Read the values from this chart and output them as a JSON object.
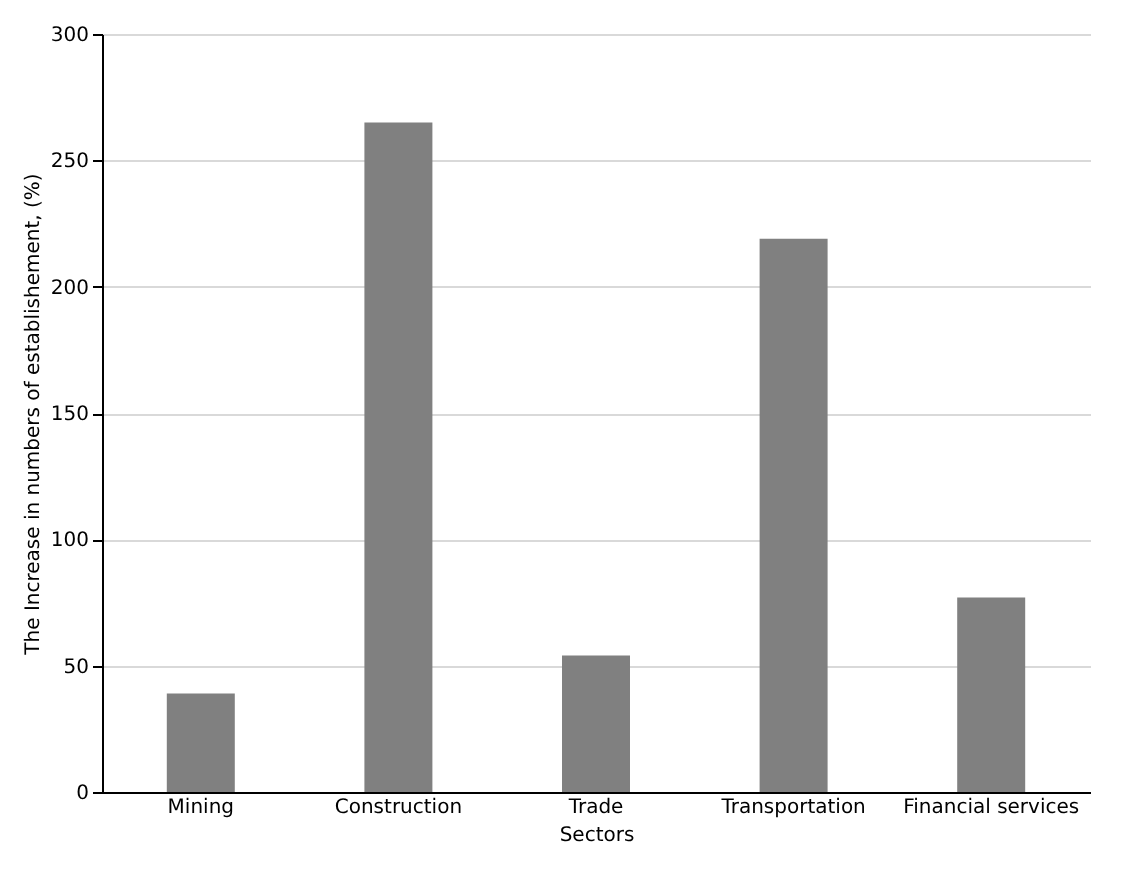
{
  "chart_data": {
    "type": "bar",
    "xlabel": "Sectors",
    "ylabel": "The Increase in numbers of establishement, (%)",
    "categories": [
      "Mining",
      "Construction",
      "Trade",
      "Transportation",
      "Financial services"
    ],
    "values": [
      39,
      265,
      54,
      219,
      77
    ],
    "color": "#808080",
    "ylim": [
      0,
      300
    ],
    "yticks": [
      0,
      50,
      100,
      150,
      200,
      250,
      300
    ],
    "grid": "y"
  }
}
